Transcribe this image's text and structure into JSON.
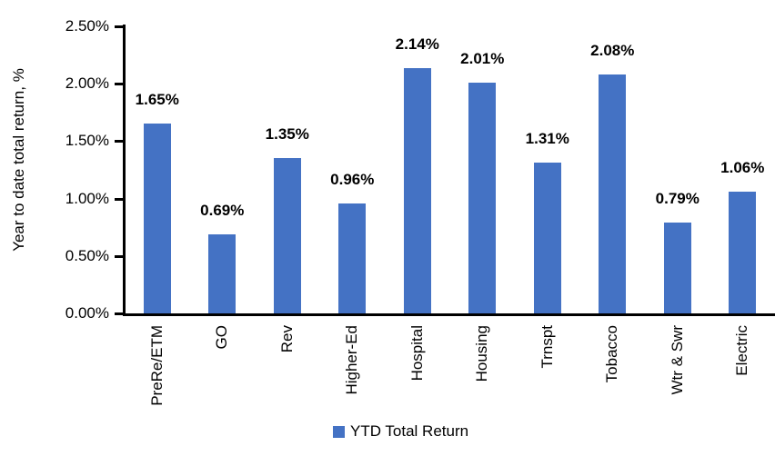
{
  "chart_data": {
    "type": "bar",
    "title": "",
    "xlabel": "",
    "ylabel": "Year to date total return, %",
    "categories": [
      "PreRe/ETM",
      "GO",
      "Rev",
      "Higher-Ed",
      "Hospital",
      "Housing",
      "Trnspt",
      "Tobacco",
      "Wtr & Swr",
      "Electric"
    ],
    "values": [
      1.65,
      0.69,
      1.35,
      0.96,
      2.14,
      2.01,
      1.31,
      2.08,
      0.79,
      1.06
    ],
    "value_labels": [
      "1.65%",
      "0.69%",
      "1.35%",
      "0.96%",
      "2.14%",
      "2.01%",
      "1.31%",
      "2.08%",
      "0.79%",
      "1.06%"
    ],
    "y_ticks": [
      {
        "label": "0.00%",
        "value": 0.0
      },
      {
        "label": "0.50%",
        "value": 0.5
      },
      {
        "label": "1.00%",
        "value": 1.0
      },
      {
        "label": "1.50%",
        "value": 1.5
      },
      {
        "label": "2.00%",
        "value": 2.0
      },
      {
        "label": "2.50%",
        "value": 2.5
      }
    ],
    "ylim": [
      0,
      2.5
    ],
    "grid": false,
    "legend": [
      "YTD Total Return"
    ],
    "legend_position": "bottom",
    "bar_color": "#4472C4"
  }
}
